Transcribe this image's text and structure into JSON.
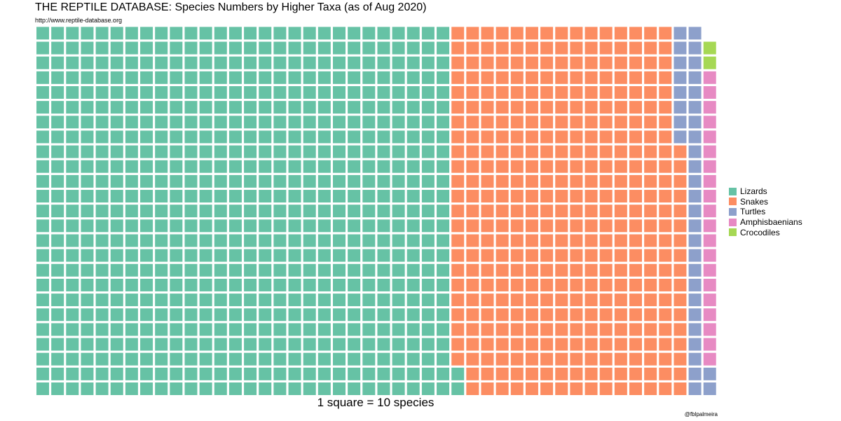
{
  "chart_data": {
    "type": "waffle",
    "title": "THE REPTILE DATABASE: Species Numbers by Higher Taxa (as of Aug 2020)",
    "subtitle": "http://www.reptile-database.org",
    "caption": "1 square = 10 species",
    "credit": "@fblpalmeira",
    "rows": 25,
    "units_per_square": 10,
    "legend_position": "right",
    "categories": [
      "Lizards",
      "Snakes",
      "Turtles",
      "Amphisbaenians",
      "Crocodiles"
    ],
    "colors": [
      "#66c2a5",
      "#fc8d62",
      "#8da0cb",
      "#e78ac3",
      "#a6d854"
    ],
    "squares": [
      702,
      390,
      35,
      20,
      2
    ]
  }
}
